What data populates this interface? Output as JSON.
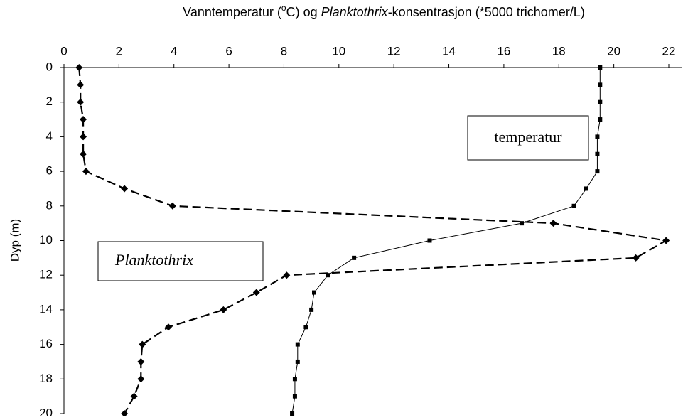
{
  "chart_data": {
    "type": "line",
    "title_parts": [
      "Vanntemperatur (",
      "o",
      "C) og ",
      "Planktothrix",
      "-konsentrasjon (*5000 trichomer/L)"
    ],
    "y_label": "Dyp (m)",
    "depths": [
      0,
      1,
      2,
      3,
      4,
      5,
      6,
      7,
      8,
      9,
      10,
      11,
      12,
      13,
      14,
      15,
      16,
      17,
      18,
      19,
      20
    ],
    "xlim": [
      0,
      22
    ],
    "xticks": [
      0,
      2,
      4,
      6,
      8,
      10,
      12,
      14,
      16,
      18,
      20,
      22
    ],
    "ylim": [
      0,
      20
    ],
    "yticks": [
      0,
      2,
      4,
      6,
      8,
      10,
      12,
      14,
      16,
      18,
      20
    ],
    "y_inverted": true,
    "series": [
      {
        "name": "temperatur",
        "color": "#000000",
        "style": "solid",
        "marker": "square",
        "values": [
          19.5,
          19.5,
          19.5,
          19.5,
          19.4,
          19.4,
          19.4,
          19.0,
          18.55,
          16.65,
          13.3,
          10.55,
          9.6,
          9.1,
          9.0,
          8.8,
          8.5,
          8.5,
          8.4,
          8.4,
          8.3
        ]
      },
      {
        "name": "Planktothrix",
        "color": "#000000",
        "style": "dashed",
        "marker": "diamond",
        "values": [
          0.55,
          0.6,
          0.6,
          0.7,
          0.7,
          0.7,
          0.8,
          2.2,
          3.95,
          17.8,
          21.9,
          20.8,
          8.1,
          7.0,
          5.8,
          3.8,
          2.85,
          2.8,
          2.8,
          2.55,
          2.2
        ]
      }
    ]
  }
}
